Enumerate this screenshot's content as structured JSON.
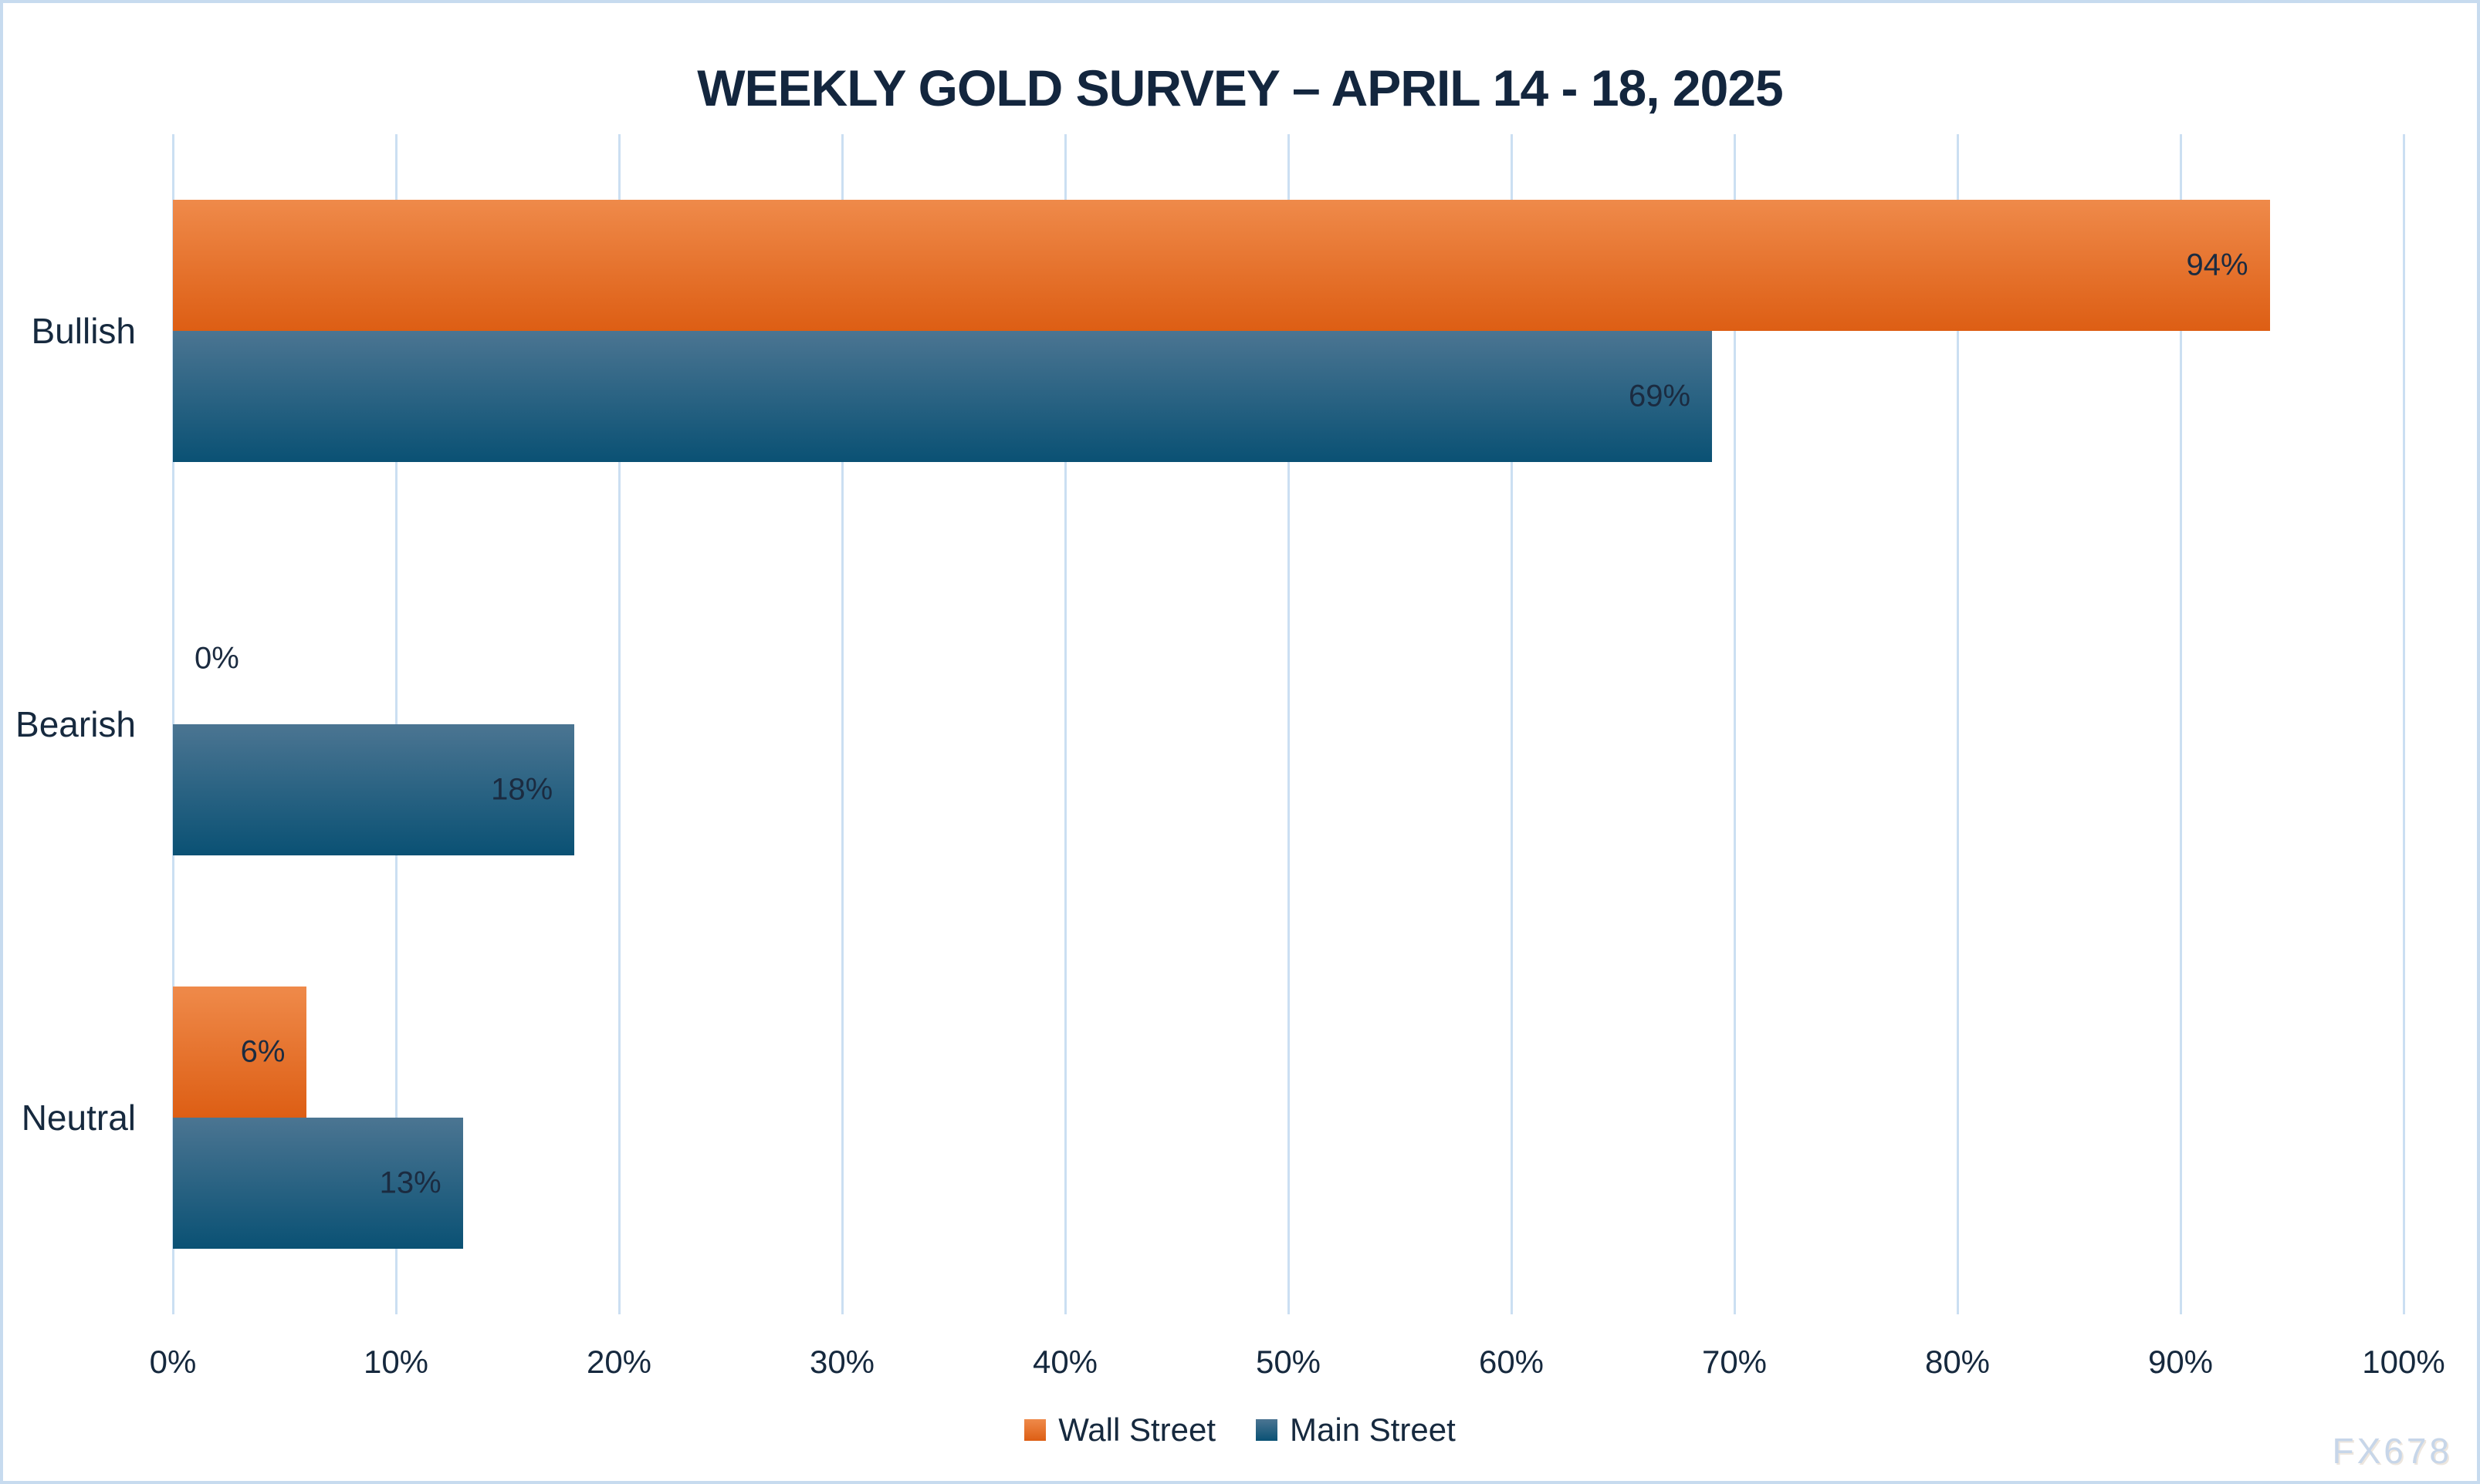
{
  "title": "WEEKLY GOLD SURVEY – APRIL 14 - 18, 2025",
  "watermark": "FX678",
  "chart_data": {
    "type": "bar",
    "orientation": "horizontal",
    "title": "WEEKLY GOLD SURVEY – APRIL 14 - 18, 2025",
    "categories": [
      "Bullish",
      "Bearish",
      "Neutral"
    ],
    "series": [
      {
        "name": "Wall Street",
        "values": [
          94,
          0,
          6
        ]
      },
      {
        "name": "Main Street",
        "values": [
          69,
          18,
          13
        ]
      }
    ],
    "value_labels": [
      [
        "94%",
        "0%",
        "6%"
      ],
      [
        "69%",
        "18%",
        "13%"
      ]
    ],
    "xlabel": "",
    "ylabel": "",
    "xlim": [
      0,
      100
    ],
    "x_ticks": [
      "0%",
      "10%",
      "20%",
      "30%",
      "40%",
      "50%",
      "60%",
      "70%",
      "80%",
      "90%",
      "100%"
    ],
    "grid": "vertical-only",
    "legend_position": "bottom-center"
  },
  "colors": {
    "wall_street_top": "#EF8A4A",
    "wall_street_bottom": "#DD5E14",
    "main_street_top": "#4B7592",
    "main_street_bottom": "#0A5174",
    "gridline": "#CBDFF2",
    "border": "#C7DBEF",
    "text": "#16293E",
    "title_text": "#13263E",
    "watermark_text": "#C7D6E9",
    "background": "#FFFFFF"
  }
}
